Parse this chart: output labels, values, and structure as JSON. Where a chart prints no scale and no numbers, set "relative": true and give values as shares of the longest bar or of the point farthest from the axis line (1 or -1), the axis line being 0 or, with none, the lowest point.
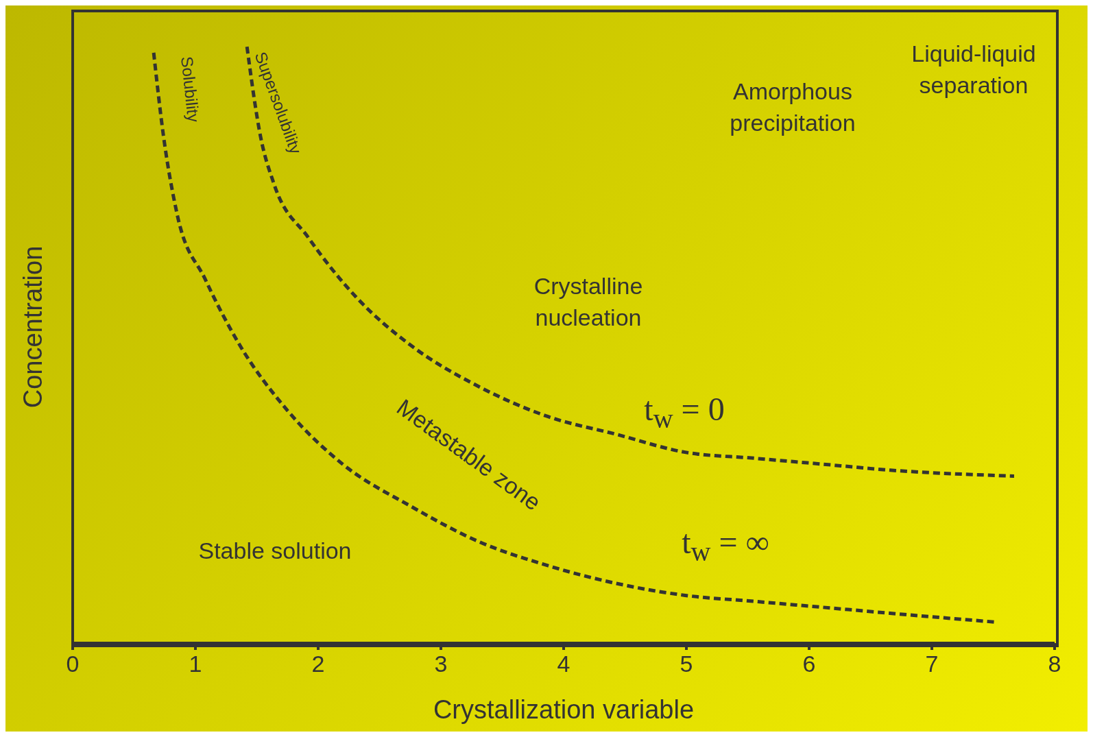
{
  "chart_data": {
    "type": "line",
    "relative": true,
    "xlabel": "Crystallization variable",
    "ylabel": "Concentration",
    "xlim": [
      0,
      8
    ],
    "xticks": [
      0,
      1,
      2,
      3,
      4,
      5,
      6,
      7,
      8
    ],
    "grid": false,
    "legend": false,
    "marker": "none",
    "line_style": "dashed",
    "series": [
      {
        "name": "Solubility",
        "color": "#333333",
        "x": [
          0.66,
          0.74,
          0.85,
          1.08,
          1.36,
          1.75,
          2.2,
          2.75,
          3.31,
          3.87,
          4.43,
          4.99,
          5.55,
          6.11,
          6.66,
          7.53
        ],
        "values": [
          0.99,
          0.85,
          0.72,
          0.61,
          0.5,
          0.39,
          0.3,
          0.23,
          0.17,
          0.13,
          0.1,
          0.08,
          0.07,
          0.06,
          0.05,
          0.035
        ]
      },
      {
        "name": "Supersolubility",
        "color": "#333333",
        "x": [
          1.42,
          1.53,
          1.64,
          1.92,
          2.31,
          2.75,
          3.31,
          3.87,
          4.43,
          4.99,
          5.55,
          6.11,
          6.66,
          7.67
        ],
        "values": [
          1.0,
          0.85,
          0.77,
          0.68,
          0.58,
          0.5,
          0.43,
          0.38,
          0.35,
          0.32,
          0.31,
          0.3,
          0.29,
          0.28
        ]
      }
    ],
    "annotations": [
      "Liquid-liquid separation",
      "Amorphous precipitation",
      "Crystalline nucleation",
      "Metastable zone",
      "Stable solution",
      "t$_{w}$ = 0",
      "t$_{w}$ = ∞"
    ]
  }
}
